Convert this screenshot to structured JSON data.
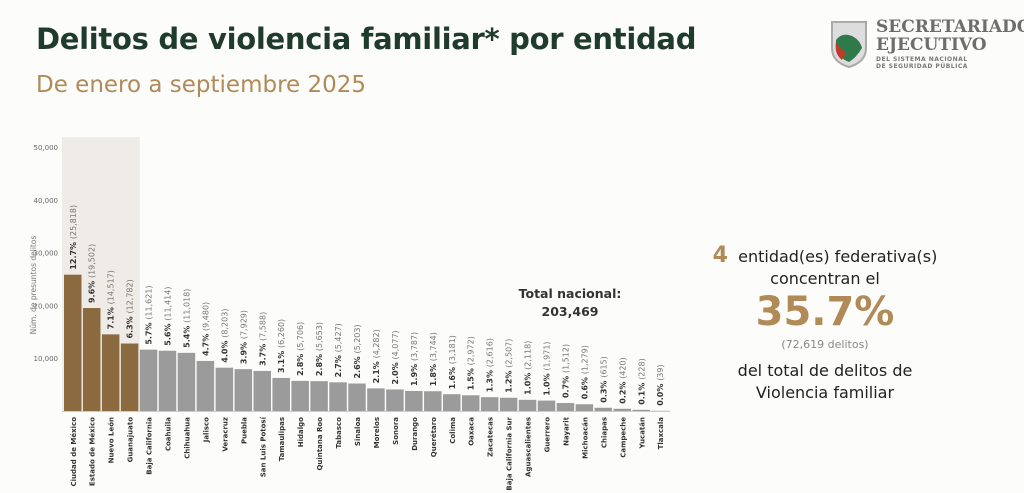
{
  "header": {
    "title": "Delitos de violencia familiar* por entidad",
    "subtitle": "De enero a septiembre 2025"
  },
  "logo": {
    "line1": "SECRETARIADO",
    "line2": "EJECUTIVO",
    "line3": "DEL SISTEMA NACIONAL",
    "line4": "DE SEGURIDAD PÚBLICA"
  },
  "summary": {
    "count": "4",
    "text1": "entidad(es)  federativa(s)",
    "text2": "concentran el",
    "percent": "35.7%",
    "delitos": "(72,619  delitos)",
    "text3": "del total  de delitos  de",
    "text4": "Violencia  familiar"
  },
  "colors": {
    "highlight": "#8b6a40",
    "other": "#9b9b9b",
    "highlight_bg": "#efebe6",
    "accent": "#b08a57",
    "title": "#1f3b2c"
  },
  "chart_data": {
    "type": "bar",
    "ylabel": "Núm. de presuntos delitos",
    "ylim": [
      0,
      50000
    ],
    "yticks": [
      "10,000",
      "20,000",
      "30,000",
      "40,000",
      "50,000"
    ],
    "total_label": "Total nacional:",
    "total_value": "203,469",
    "highlighted_count": 4,
    "categories": [
      "Ciudad de México",
      "Estado de México",
      "Nuevo León",
      "Guanajuato",
      "Baja California",
      "Coahuila",
      "Chihuahua",
      "Jalisco",
      "Veracruz",
      "Puebla",
      "San Luis Potosí",
      "Tamaulipas",
      "Hidalgo",
      "Quintana Roo",
      "Tabasco",
      "Sinaloa",
      "Morelos",
      "Sonora",
      "Durango",
      "Querétaro",
      "Colima",
      "Oaxaca",
      "Zacatecas",
      "Baja California Sur",
      "Aguascalientes",
      "Guerrero",
      "Nayarit",
      "Michoacán",
      "Chiapas",
      "Campeche",
      "Yucatán",
      "Tlaxcala"
    ],
    "values": [
      25818,
      19502,
      14517,
      12782,
      11621,
      11414,
      11018,
      9480,
      8203,
      7929,
      7588,
      6260,
      5706,
      5653,
      5427,
      5203,
      4282,
      4077,
      3787,
      3744,
      3181,
      2972,
      2616,
      2507,
      2118,
      1971,
      1512,
      1279,
      615,
      420,
      228,
      39
    ],
    "percents": [
      "12.7%",
      "9.6%",
      "7.1%",
      "6.3%",
      "5.7%",
      "5.6%",
      "5.4%",
      "4.7%",
      "4.0%",
      "3.9%",
      "3.7%",
      "3.1%",
      "2.8%",
      "2.8%",
      "2.7%",
      "2.6%",
      "2.1%",
      "2.0%",
      "1.9%",
      "1.8%",
      "1.6%",
      "1.5%",
      "1.3%",
      "1.2%",
      "1.0%",
      "1.0%",
      "0.7%",
      "0.6%",
      "0.3%",
      "0.2%",
      "0.1%",
      "0.0%"
    ],
    "value_labels": [
      "(25,818)",
      "(19,502)",
      "(14,517)",
      "(12,782)",
      "(11,621)",
      "(11,414)",
      "(11,018)",
      "(9,480)",
      "(8,203)",
      "(7,929)",
      "(7,588)",
      "(6,260)",
      "(5,706)",
      "(5,653)",
      "(5,427)",
      "(5,203)",
      "(4,282)",
      "(4,077)",
      "(3,787)",
      "(3,744)",
      "(3,181)",
      "(2,972)",
      "(2,616)",
      "(2,507)",
      "(2,118)",
      "(1,971)",
      "(1,512)",
      "(1,279)",
      "(615)",
      "(420)",
      "(228)",
      "(39)"
    ]
  }
}
